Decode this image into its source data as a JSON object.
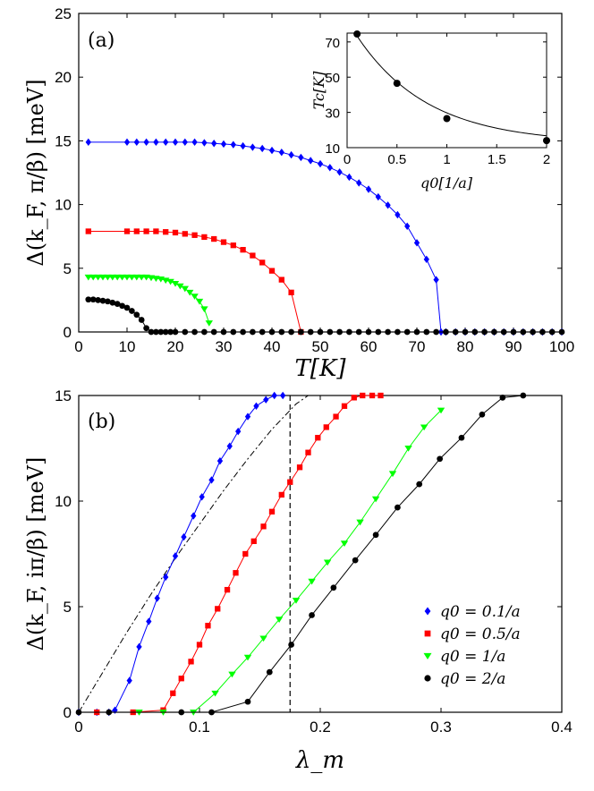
{
  "colors": {
    "blue": "#0000ff",
    "red": "#ff0000",
    "green": "#00ff00",
    "black": "#000000"
  },
  "chart_data": [
    {
      "id": "a",
      "type": "line",
      "panel_label": "(a)",
      "xlabel": "T[K]",
      "ylabel": "Δ(k_F, π/β) [meV]",
      "xlim": [
        0,
        100
      ],
      "ylim": [
        0,
        25
      ],
      "xticks": [
        "0",
        "10",
        "20",
        "30",
        "40",
        "50",
        "60",
        "70",
        "80",
        "90",
        "100"
      ],
      "yticks": [
        "0",
        "5",
        "10",
        "15",
        "20",
        "25"
      ],
      "series": [
        {
          "name": "q0 = 0.1/a",
          "color": "blue",
          "marker": "diamond",
          "x": [
            2,
            10,
            12,
            14,
            16,
            18,
            20,
            22,
            24,
            26,
            28,
            30,
            32,
            34,
            36,
            38,
            40,
            42,
            44,
            46,
            48,
            50,
            52,
            54,
            56,
            58,
            60,
            62,
            64,
            66,
            68,
            70,
            72,
            74,
            75,
            76,
            78,
            80,
            82,
            84,
            86,
            88,
            90,
            92,
            94,
            96,
            98,
            100
          ],
          "y": [
            14.9,
            14.9,
            14.9,
            14.9,
            14.9,
            14.9,
            14.9,
            14.9,
            14.9,
            14.85,
            14.8,
            14.75,
            14.7,
            14.6,
            14.5,
            14.4,
            14.25,
            14.1,
            13.9,
            13.7,
            13.45,
            13.2,
            12.9,
            12.55,
            12.15,
            11.7,
            11.2,
            10.6,
            9.95,
            9.2,
            8.3,
            7.0,
            5.7,
            4.1,
            0,
            0,
            0,
            0,
            0,
            0,
            0,
            0,
            0,
            0,
            0,
            0,
            0,
            0
          ]
        },
        {
          "name": "q0 = 0.5/a",
          "color": "red",
          "marker": "square",
          "x": [
            2,
            10,
            12,
            14,
            16,
            18,
            20,
            22,
            24,
            26,
            28,
            30,
            32,
            34,
            36,
            38,
            40,
            42,
            44,
            46
          ],
          "y": [
            7.9,
            7.9,
            7.9,
            7.9,
            7.9,
            7.85,
            7.8,
            7.7,
            7.6,
            7.45,
            7.3,
            7.05,
            6.8,
            6.45,
            6.0,
            5.45,
            4.8,
            4.1,
            3.1,
            0
          ]
        },
        {
          "name": "q0 = 1/a",
          "color": "green",
          "marker": "triangle",
          "x": [
            2,
            3,
            4,
            5,
            6,
            7,
            8,
            9,
            10,
            11,
            12,
            13,
            14,
            15,
            16,
            17,
            18,
            19,
            20,
            21,
            22,
            23,
            24,
            25,
            26,
            27
          ],
          "y": [
            4.3,
            4.3,
            4.3,
            4.3,
            4.3,
            4.3,
            4.3,
            4.3,
            4.3,
            4.3,
            4.3,
            4.3,
            4.3,
            4.25,
            4.2,
            4.15,
            4.05,
            3.95,
            3.8,
            3.6,
            3.4,
            3.1,
            2.8,
            2.4,
            1.8,
            0.7
          ]
        },
        {
          "name": "q0 = 2/a",
          "color": "black",
          "marker": "circle",
          "x": [
            2,
            3,
            4,
            5,
            6,
            7,
            8,
            9,
            10,
            11,
            12,
            13,
            14,
            15,
            16,
            17,
            18,
            19,
            20,
            22,
            24,
            26,
            28,
            30,
            32,
            34,
            36,
            38,
            40,
            42,
            44,
            46,
            48,
            50,
            52,
            54,
            56,
            58,
            60,
            62,
            64,
            66,
            68,
            70,
            72,
            74,
            76,
            78,
            80,
            82,
            84,
            86,
            88,
            90,
            92,
            94,
            96,
            98,
            100
          ],
          "y": [
            2.55,
            2.55,
            2.5,
            2.45,
            2.4,
            2.3,
            2.2,
            2.05,
            1.9,
            1.65,
            1.35,
            0.95,
            0.3,
            0,
            0,
            0,
            0,
            0,
            0,
            0,
            0,
            0,
            0,
            0,
            0,
            0,
            0,
            0,
            0,
            0,
            0,
            0,
            0,
            0,
            0,
            0,
            0,
            0,
            0,
            0,
            0,
            0,
            0,
            0,
            0,
            0,
            0,
            0,
            0,
            0,
            0,
            0,
            0,
            0,
            0,
            0,
            0,
            0,
            0
          ]
        }
      ],
      "inset": {
        "xlabel": "q0[1/a]",
        "ylabel": "Tc[K]",
        "xlim": [
          0,
          2
        ],
        "ylim": [
          10,
          75
        ],
        "xticks": [
          "0",
          "0.5",
          "1",
          "1.5",
          "2"
        ],
        "yticks": [
          "10",
          "30",
          "50",
          "70"
        ],
        "points": {
          "x": [
            0.1,
            0.5,
            1,
            2
          ],
          "y": [
            74.5,
            46.5,
            26.5,
            14
          ]
        }
      }
    },
    {
      "id": "b",
      "type": "line",
      "panel_label": "(b)",
      "xlabel": "λm",
      "ylabel": "Δ(k_F, iπ/β) [meV]",
      "xlim": [
        0,
        0.4
      ],
      "ylim": [
        0,
        15
      ],
      "xticks": [
        "0",
        "0.1",
        "0.2",
        "0.3",
        "0.4"
      ],
      "yticks": [
        "0",
        "5",
        "10",
        "15"
      ],
      "vline_x": 0.175,
      "dashdot": {
        "x": [
          0,
          0.02,
          0.04,
          0.06,
          0.08,
          0.1,
          0.12,
          0.14,
          0.16,
          0.18,
          0.19
        ],
        "y": [
          0,
          1.9,
          3.8,
          5.6,
          7.3,
          8.9,
          10.5,
          12.0,
          13.4,
          14.6,
          15
        ]
      },
      "legend": [
        "q0 = 0.1/a",
        "q0 = 0.5/a",
        "q0 = 1/a",
        "q0 = 2/a"
      ],
      "series": [
        {
          "name": "q0 = 0.1/a",
          "color": "blue",
          "marker": "diamond",
          "x": [
            0,
            0.015,
            0.025,
            0.03,
            0.042,
            0.05,
            0.058,
            0.065,
            0.072,
            0.08,
            0.087,
            0.095,
            0.102,
            0.11,
            0.117,
            0.125,
            0.132,
            0.14,
            0.147,
            0.155,
            0.162,
            0.169
          ],
          "y": [
            0,
            0,
            0,
            0.1,
            1.5,
            3.1,
            4.3,
            5.4,
            6.4,
            7.4,
            8.3,
            9.3,
            10.2,
            11.0,
            11.9,
            12.6,
            13.3,
            14.0,
            14.5,
            14.8,
            15.0,
            15.0
          ]
        },
        {
          "name": "q0 = 0.5/a",
          "color": "red",
          "marker": "square",
          "x": [
            0.015,
            0.045,
            0.07,
            0.078,
            0.085,
            0.093,
            0.1,
            0.107,
            0.115,
            0.123,
            0.13,
            0.138,
            0.145,
            0.153,
            0.16,
            0.168,
            0.175,
            0.183,
            0.19,
            0.198,
            0.205,
            0.213,
            0.22,
            0.228,
            0.235,
            0.243,
            0.25
          ],
          "y": [
            0,
            0,
            0.1,
            0.9,
            1.6,
            2.4,
            3.2,
            4.1,
            4.9,
            5.8,
            6.6,
            7.5,
            8.1,
            8.8,
            9.5,
            10.3,
            10.9,
            11.6,
            12.3,
            13.0,
            13.5,
            14.0,
            14.5,
            14.9,
            15,
            15,
            15
          ]
        },
        {
          "name": "q0 = 1/a",
          "color": "green",
          "marker": "triangle",
          "x": [
            0.05,
            0.07,
            0.095,
            0.113,
            0.127,
            0.14,
            0.153,
            0.166,
            0.18,
            0.193,
            0.206,
            0.22,
            0.233,
            0.246,
            0.26,
            0.273,
            0.286,
            0.3
          ],
          "y": [
            0,
            0,
            0,
            0.9,
            1.8,
            2.6,
            3.5,
            4.4,
            5.3,
            6.2,
            7.1,
            8.0,
            9.0,
            10.1,
            11.3,
            12.5,
            13.5,
            14.3
          ]
        },
        {
          "name": "q0 = 2/a",
          "color": "black",
          "marker": "circle",
          "x": [
            0,
            0.025,
            0.085,
            0.11,
            0.14,
            0.158,
            0.176,
            0.193,
            0.211,
            0.229,
            0.246,
            0.264,
            0.282,
            0.299,
            0.317,
            0.334,
            0.351,
            0.368
          ],
          "y": [
            0,
            0,
            0,
            0,
            0.5,
            1.9,
            3.2,
            4.6,
            5.9,
            7.2,
            8.4,
            9.7,
            10.8,
            12.0,
            13.0,
            14.1,
            14.9,
            15
          ]
        }
      ]
    }
  ],
  "ui": {
    "a": {
      "xlabel": "T[K]",
      "ylabel": "Δ(k_F, π/β) [meV]"
    },
    "b": {
      "xlabel": "λ_m",
      "ylabel": "Δ(k_F, iπ/β) [meV]"
    }
  }
}
